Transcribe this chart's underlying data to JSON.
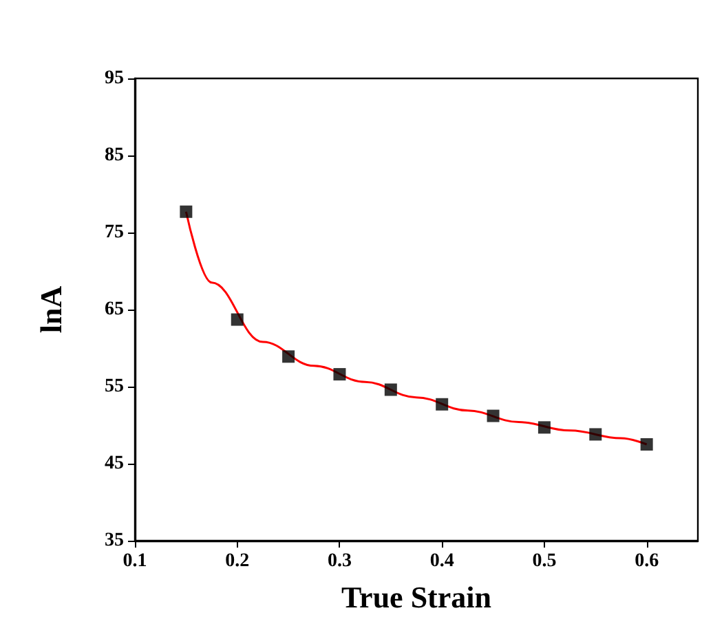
{
  "chart_data": {
    "type": "scatter",
    "xlabel": "True Strain",
    "ylabel": "lnA",
    "xlim": [
      0.1,
      0.65
    ],
    "xticks": [
      0.1,
      0.2,
      0.3,
      0.4,
      0.5,
      0.6
    ],
    "ylim": [
      35,
      95
    ],
    "yticks": [
      35,
      45,
      55,
      65,
      75,
      85,
      95
    ],
    "grid": false,
    "series": [
      {
        "marker": "square",
        "color": "#000000",
        "x": [
          0.15,
          0.2,
          0.25,
          0.3,
          0.35,
          0.4,
          0.45,
          0.5,
          0.55,
          0.6
        ],
        "values": [
          77.7,
          63.7,
          58.9,
          56.6,
          54.6,
          52.7,
          51.2,
          49.7,
          48.8,
          47.5
        ]
      },
      {
        "type": "line",
        "marker": "none",
        "line_style": "solid",
        "color": "#ff0000",
        "x": [
          0.15,
          0.175,
          0.225,
          0.275,
          0.325,
          0.375,
          0.425,
          0.475,
          0.525,
          0.575,
          0.6
        ],
        "values": [
          77.7,
          68.5,
          60.8,
          57.7,
          55.6,
          53.6,
          51.9,
          50.4,
          49.3,
          48.3,
          47.5
        ]
      }
    ]
  }
}
